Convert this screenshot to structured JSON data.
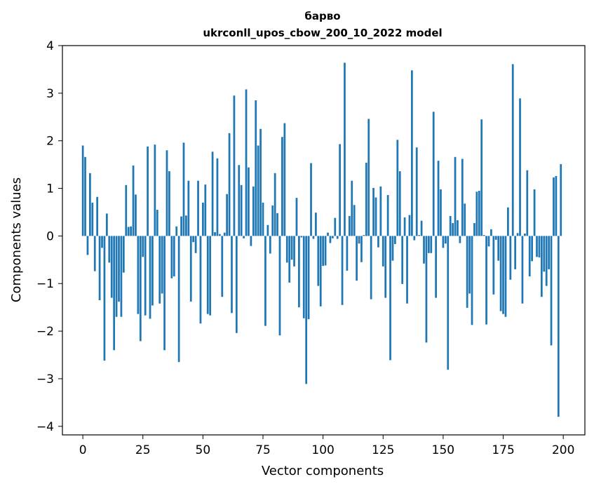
{
  "chart_data": {
    "type": "bar",
    "title": "барво",
    "subtitle": "ukrconll_upos_cbow_200_10_2022 model",
    "xlabel": "Vector components",
    "ylabel": "Components values",
    "xlim": [
      -8.5,
      209
    ],
    "ylim": [
      -4.18,
      4
    ],
    "xticks": [
      0,
      25,
      50,
      75,
      100,
      125,
      150,
      175,
      200
    ],
    "xtick_labels": [
      "0",
      "25",
      "50",
      "75",
      "100",
      "125",
      "150",
      "175",
      "200"
    ],
    "yticks": [
      -4,
      -3,
      -2,
      -1,
      0,
      1,
      2,
      3,
      4
    ],
    "ytick_labels": [
      "−4",
      "−3",
      "−2",
      "−1",
      "0",
      "1",
      "2",
      "3",
      "4"
    ],
    "bar_color": "#1f77b4",
    "grid": false,
    "legend": "none",
    "x": [
      0,
      1,
      2,
      3,
      4,
      5,
      6,
      7,
      8,
      9,
      10,
      11,
      12,
      13,
      14,
      15,
      16,
      17,
      18,
      19,
      20,
      21,
      22,
      23,
      24,
      25,
      26,
      27,
      28,
      29,
      30,
      31,
      32,
      33,
      34,
      35,
      36,
      37,
      38,
      39,
      40,
      41,
      42,
      43,
      44,
      45,
      46,
      47,
      48,
      49,
      50,
      51,
      52,
      53,
      54,
      55,
      56,
      57,
      58,
      59,
      60,
      61,
      62,
      63,
      64,
      65,
      66,
      67,
      68,
      69,
      70,
      71,
      72,
      73,
      74,
      75,
      76,
      77,
      78,
      79,
      80,
      81,
      82,
      83,
      84,
      85,
      86,
      87,
      88,
      89,
      90,
      91,
      92,
      93,
      94,
      95,
      96,
      97,
      98,
      99,
      100,
      101,
      102,
      103,
      104,
      105,
      106,
      107,
      108,
      109,
      110,
      111,
      112,
      113,
      114,
      115,
      116,
      117,
      118,
      119,
      120,
      121,
      122,
      123,
      124,
      125,
      126,
      127,
      128,
      129,
      130,
      131,
      132,
      133,
      134,
      135,
      136,
      137,
      138,
      139,
      140,
      141,
      142,
      143,
      144,
      145,
      146,
      147,
      148,
      149,
      150,
      151,
      152,
      153,
      154,
      155,
      156,
      157,
      158,
      159,
      160,
      161,
      162,
      163,
      164,
      165,
      166,
      167,
      168,
      169,
      170,
      171,
      172,
      173,
      174,
      175,
      176,
      177,
      178,
      179,
      180,
      181,
      182,
      183,
      184,
      185,
      186,
      187,
      188,
      189,
      190,
      191,
      192,
      193,
      194,
      195,
      196,
      197,
      198,
      199
    ],
    "values": [
      1.9,
      1.66,
      -0.4,
      1.32,
      0.7,
      -0.74,
      0.82,
      -1.35,
      -0.25,
      -2.62,
      0.47,
      -0.56,
      -1.3,
      -2.4,
      -1.7,
      -1.38,
      -1.7,
      -0.77,
      1.07,
      0.19,
      0.2,
      1.48,
      0.87,
      -1.64,
      -2.21,
      -0.44,
      -1.67,
      1.88,
      -1.74,
      -1.46,
      1.92,
      0.55,
      -1.42,
      -1.21,
      -2.4,
      1.8,
      1.36,
      -0.89,
      -0.85,
      0.2,
      -2.65,
      0.41,
      1.96,
      0.43,
      1.16,
      -1.38,
      -0.13,
      -0.36,
      1.16,
      -1.84,
      0.7,
      1.08,
      -1.64,
      -1.67,
      1.77,
      0.08,
      1.63,
      0.04,
      -1.28,
      0.07,
      0.88,
      2.16,
      -1.62,
      2.95,
      -2.04,
      1.49,
      1.07,
      -0.05,
      3.08,
      1.44,
      -0.21,
      1.04,
      2.85,
      1.9,
      2.25,
      0.7,
      -1.89,
      0.23,
      -0.37,
      0.64,
      1.32,
      0.48,
      -2.09,
      2.08,
      2.37,
      -0.56,
      -0.98,
      -0.5,
      -0.64,
      0.8,
      -1.5,
      -0.03,
      -1.73,
      -3.11,
      -1.75,
      1.53,
      -0.06,
      0.49,
      -1.05,
      -1.48,
      -0.63,
      -0.62,
      0.07,
      -0.15,
      -0.05,
      0.38,
      -0.06,
      1.93,
      -1.45,
      3.64,
      -0.73,
      0.42,
      1.16,
      0.65,
      -0.94,
      -0.16,
      -0.55,
      0.02,
      1.54,
      2.46,
      -1.33,
      1.01,
      0.81,
      -0.24,
      1.04,
      -0.64,
      -1.3,
      0.86,
      -2.61,
      -0.52,
      -0.17,
      2.02,
      1.36,
      -1.01,
      0.39,
      -1.42,
      0.44,
      3.48,
      -0.09,
      1.86,
      0.02,
      0.32,
      -0.58,
      -2.24,
      -0.36,
      -0.36,
      2.61,
      -1.3,
      1.58,
      0.98,
      -0.25,
      -0.16,
      -2.81,
      0.42,
      0.27,
      1.66,
      0.33,
      -0.15,
      1.62,
      0.68,
      -1.51,
      -1.21,
      -1.87,
      0.27,
      0.93,
      0.95,
      2.45,
      0.02,
      -1.86,
      -0.22,
      0.14,
      -1.23,
      -0.08,
      -0.52,
      -1.58,
      -1.64,
      -1.7,
      0.6,
      -0.92,
      3.61,
      -0.7,
      0.06,
      2.89,
      -1.42,
      0.05,
      1.38,
      -0.85,
      -0.53,
      0.98,
      -0.44,
      -0.45,
      -1.28,
      -0.75,
      -1.05,
      -0.7,
      -2.3,
      1.23,
      1.26,
      -3.8,
      1.51
    ]
  }
}
